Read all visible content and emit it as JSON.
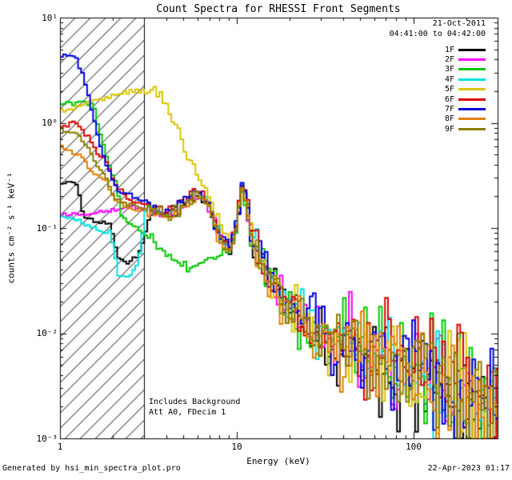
{
  "header": {
    "date": "21-Oct-2011",
    "time_range": "04:41:00 to 04:42:00"
  },
  "footer": {
    "left": "Generated by hsi_min_spectra_plot.pro",
    "right": "22-Apr-2023 01:17"
  },
  "chart_data": {
    "type": "line",
    "title": "Count Spectra for RHESSI Front Segments",
    "xlabel": "Energy (keV)",
    "ylabel": "counts cm⁻² s⁻¹ keV⁻¹",
    "xscale": "log",
    "yscale": "log",
    "xlim": [
      1,
      300
    ],
    "ylim": [
      0.001,
      10
    ],
    "xtick_labels": [
      "1",
      "10",
      "100"
    ],
    "ytick_labels": [
      "10¹",
      "10⁰",
      "10⁻¹",
      "10⁻²",
      "10⁻³"
    ],
    "legend_position": "top-right-inside",
    "hatch_region": {
      "xmin": 1,
      "xmax": 3
    },
    "annotations": [
      "Includes Background",
      "Att A0, FDecim 1"
    ],
    "base_tail": [
      [
        3.2,
        0.15
      ],
      [
        3.6,
        0.135
      ],
      [
        4.0,
        0.128
      ],
      [
        4.5,
        0.145
      ],
      [
        5.0,
        0.175
      ],
      [
        5.5,
        0.2
      ],
      [
        6.0,
        0.21
      ],
      [
        6.5,
        0.185
      ],
      [
        7.0,
        0.145
      ],
      [
        7.5,
        0.1
      ],
      [
        8.0,
        0.075
      ],
      [
        8.5,
        0.068
      ],
      [
        9.0,
        0.065
      ],
      [
        9.5,
        0.08
      ],
      [
        10.0,
        0.13
      ],
      [
        10.5,
        0.26
      ],
      [
        11.0,
        0.2
      ],
      [
        11.5,
        0.12
      ],
      [
        12,
        0.08
      ],
      [
        13,
        0.055
      ],
      [
        14,
        0.042
      ],
      [
        16,
        0.028
      ],
      [
        18,
        0.021
      ],
      [
        20,
        0.016
      ],
      [
        23,
        0.013
      ],
      [
        26,
        0.011
      ],
      [
        30,
        0.0095
      ],
      [
        35,
        0.0085
      ],
      [
        40,
        0.0078
      ],
      [
        50,
        0.0068
      ],
      [
        60,
        0.006
      ],
      [
        70,
        0.0055
      ],
      [
        80,
        0.005
      ],
      [
        90,
        0.0046
      ],
      [
        100,
        0.0043
      ],
      [
        120,
        0.0037
      ],
      [
        140,
        0.0033
      ],
      [
        170,
        0.0028
      ],
      [
        200,
        0.0024
      ],
      [
        250,
        0.0019
      ],
      [
        300,
        0.0016
      ]
    ],
    "series": [
      {
        "label": "1F",
        "color": "#000000",
        "seed": 11,
        "tail_scale": 1.0,
        "head": [
          [
            1.0,
            0.26
          ],
          [
            1.2,
            0.285
          ],
          [
            1.35,
            0.125
          ],
          [
            1.6,
            0.115
          ],
          [
            1.9,
            0.11
          ],
          [
            2.1,
            0.05
          ],
          [
            2.4,
            0.048
          ],
          [
            2.7,
            0.052
          ],
          [
            3.0,
            0.09
          ]
        ]
      },
      {
        "label": "2F",
        "color": "#ff00ff",
        "seed": 22,
        "tail_scale": 1.0,
        "head": [
          [
            1.0,
            0.135
          ],
          [
            1.4,
            0.14
          ],
          [
            1.8,
            0.145
          ],
          [
            2.2,
            0.155
          ],
          [
            2.6,
            0.16
          ],
          [
            3.0,
            0.15
          ]
        ]
      },
      {
        "label": "3F",
        "color": "#00c800",
        "seed": 33,
        "tail_scale": 0.95,
        "head": [
          [
            1.0,
            1.5
          ],
          [
            1.3,
            1.55
          ],
          [
            1.5,
            1.5
          ],
          [
            1.65,
            0.85
          ],
          [
            1.8,
            0.45
          ],
          [
            2.0,
            0.3
          ],
          [
            2.2,
            0.13
          ],
          [
            2.5,
            0.105
          ],
          [
            2.8,
            0.095
          ],
          [
            3.2,
            0.08
          ],
          [
            3.8,
            0.06
          ],
          [
            4.5,
            0.048
          ],
          [
            5.2,
            0.042
          ],
          [
            6.0,
            0.045
          ],
          [
            7.0,
            0.052
          ],
          [
            8.0,
            0.055
          ],
          [
            9.0,
            0.065
          ],
          [
            9.8,
            0.1
          ],
          [
            10.4,
            0.22
          ],
          [
            11.0,
            0.16
          ],
          [
            11.6,
            0.1
          ]
        ]
      },
      {
        "label": "4F",
        "color": "#00e0e0",
        "seed": 44,
        "tail_scale": 1.05,
        "head": [
          [
            1.0,
            0.13
          ],
          [
            1.3,
            0.115
          ],
          [
            1.6,
            0.095
          ],
          [
            1.9,
            0.09
          ],
          [
            2.1,
            0.036
          ],
          [
            2.4,
            0.034
          ],
          [
            2.7,
            0.045
          ],
          [
            3.0,
            0.14
          ]
        ]
      },
      {
        "label": "5F",
        "color": "#d9c400",
        "seed": 55,
        "tail_scale": 1.0,
        "head": [
          [
            1.0,
            1.3
          ],
          [
            1.3,
            1.5
          ],
          [
            1.6,
            1.65
          ],
          [
            1.9,
            1.8
          ],
          [
            2.2,
            1.9
          ],
          [
            2.6,
            2.0
          ],
          [
            3.0,
            2.05
          ],
          [
            3.4,
            1.95
          ],
          [
            3.8,
            1.6
          ],
          [
            4.2,
            1.2
          ],
          [
            4.6,
            0.8
          ],
          [
            5.0,
            0.55
          ],
          [
            5.5,
            0.38
          ],
          [
            6.0,
            0.3
          ],
          [
            6.5,
            0.26
          ],
          [
            7.0,
            0.2
          ],
          [
            7.5,
            0.14
          ],
          [
            8.0,
            0.1
          ],
          [
            8.5,
            0.085
          ],
          [
            9.0,
            0.08
          ],
          [
            9.5,
            0.09
          ],
          [
            10.0,
            0.14
          ],
          [
            10.5,
            0.24
          ],
          [
            11.0,
            0.19
          ],
          [
            11.5,
            0.12
          ]
        ]
      },
      {
        "label": "6F",
        "color": "#dd0000",
        "seed": 66,
        "tail_scale": 1.1,
        "head": [
          [
            1.0,
            0.95
          ],
          [
            1.25,
            1.0
          ],
          [
            1.4,
            0.75
          ],
          [
            1.6,
            0.52
          ],
          [
            1.8,
            0.42
          ],
          [
            2.0,
            0.28
          ],
          [
            2.2,
            0.22
          ],
          [
            2.5,
            0.185
          ],
          [
            2.8,
            0.175
          ],
          [
            3.0,
            0.17
          ]
        ]
      },
      {
        "label": "7F",
        "color": "#0000dd",
        "seed": 77,
        "tail_scale": 1.05,
        "head": [
          [
            1.0,
            4.3
          ],
          [
            1.2,
            4.5
          ],
          [
            1.35,
            2.6
          ],
          [
            1.5,
            1.25
          ],
          [
            1.65,
            0.62
          ],
          [
            1.8,
            0.4
          ],
          [
            2.0,
            0.26
          ],
          [
            2.2,
            0.22
          ],
          [
            2.5,
            0.205
          ],
          [
            2.8,
            0.19
          ],
          [
            3.0,
            0.18
          ]
        ]
      },
      {
        "label": "8F",
        "color": "#e08000",
        "seed": 88,
        "tail_scale": 0.95,
        "head": [
          [
            1.0,
            0.6
          ],
          [
            1.3,
            0.48
          ],
          [
            1.5,
            0.33
          ],
          [
            1.8,
            0.28
          ],
          [
            2.0,
            0.19
          ],
          [
            2.3,
            0.16
          ],
          [
            2.6,
            0.15
          ],
          [
            3.0,
            0.145
          ]
        ]
      },
      {
        "label": "9F",
        "color": "#8f7d00",
        "seed": 99,
        "tail_scale": 1.0,
        "head": [
          [
            1.0,
            0.88
          ],
          [
            1.2,
            0.8
          ],
          [
            1.4,
            0.6
          ],
          [
            1.6,
            0.38
          ],
          [
            1.8,
            0.3
          ],
          [
            2.0,
            0.19
          ],
          [
            2.3,
            0.17
          ],
          [
            2.6,
            0.16
          ],
          [
            3.0,
            0.155
          ]
        ]
      }
    ]
  }
}
